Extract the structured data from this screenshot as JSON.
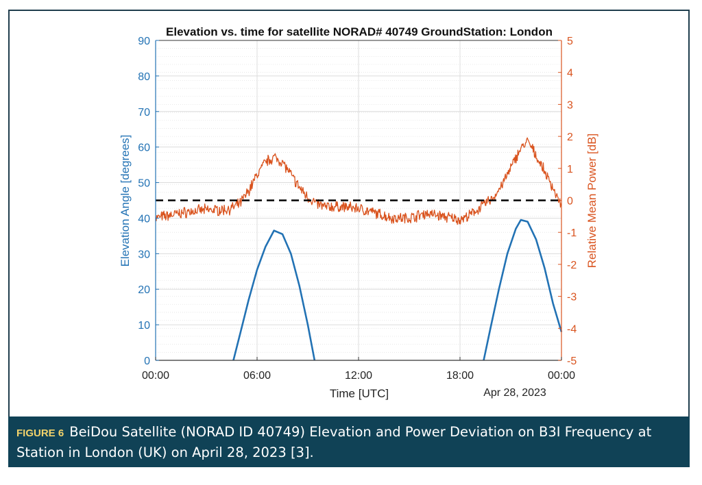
{
  "chart_data": {
    "type": "line",
    "title": "Elevation vs. time for satellite NORAD# 40749 GroundStation: London",
    "xlabel": "Time [UTC]",
    "date_label": "Apr 28, 2023",
    "x_ticks": [
      "00:00",
      "06:00",
      "12:00",
      "18:00",
      "00:00"
    ],
    "x_tick_hours": [
      0,
      6,
      12,
      18,
      24
    ],
    "xlim_hours": [
      0,
      24
    ],
    "y_left": {
      "label": "Elevation Angle [degrees]",
      "ylim": [
        0,
        90
      ],
      "ticks": [
        "0",
        "10",
        "20",
        "30",
        "40",
        "50",
        "60",
        "70",
        "80",
        "90"
      ],
      "tick_values": [
        0,
        10,
        20,
        30,
        40,
        50,
        60,
        70,
        80,
        90
      ],
      "color": "#2272b4"
    },
    "y_right": {
      "label": "Relative Mean Power [dB]",
      "ylim": [
        -5,
        5
      ],
      "ticks": [
        "-5",
        "-4",
        "-3",
        "-2",
        "-1",
        "0",
        "1",
        "2",
        "3",
        "4",
        "5"
      ],
      "tick_values": [
        -5,
        -4,
        -3,
        -2,
        -1,
        0,
        1,
        2,
        3,
        4,
        5
      ],
      "color": "#d9531e"
    },
    "grid": true,
    "series": [
      {
        "axis": "left",
        "color": "#2272b4",
        "x_hours": [
          4.6,
          5.0,
          5.5,
          6.0,
          6.5,
          7.0,
          7.5,
          8.0,
          8.5,
          9.0,
          9.4,
          19.4,
          19.8,
          20.3,
          20.8,
          21.3,
          21.6,
          22.0,
          22.5,
          23.0,
          23.5,
          24.0
        ],
        "values": [
          0,
          7.5,
          17,
          25.5,
          32,
          36.5,
          35.5,
          30,
          21,
          10,
          0,
          0,
          9,
          20,
          30,
          37,
          39.5,
          39,
          34,
          26,
          16,
          8
        ]
      },
      {
        "axis": "right",
        "color": "#d9531e",
        "x_hours": [
          0,
          1,
          2,
          3,
          4,
          4.5,
          5,
          5.5,
          6,
          6.5,
          7,
          7.5,
          8,
          8.5,
          9,
          9.5,
          10,
          11,
          12,
          13,
          14,
          15,
          16,
          17,
          18,
          18.5,
          19,
          19.5,
          20,
          20.5,
          21,
          21.5,
          22,
          22.5,
          23,
          23.5,
          24
        ],
        "values": [
          -0.55,
          -0.45,
          -0.35,
          -0.3,
          -0.3,
          -0.25,
          -0.1,
          0.3,
          0.8,
          1.2,
          1.35,
          1.2,
          0.8,
          0.4,
          0.1,
          -0.1,
          -0.2,
          -0.2,
          -0.25,
          -0.4,
          -0.55,
          -0.55,
          -0.4,
          -0.5,
          -0.6,
          -0.5,
          -0.3,
          -0.1,
          0.1,
          0.5,
          1.0,
          1.55,
          1.85,
          1.4,
          0.9,
          0.4,
          -0.2
        ]
      },
      {
        "axis": "right",
        "color": "#000000",
        "style": "dashed",
        "x_hours": [
          0,
          24
        ],
        "values": [
          0,
          0
        ]
      }
    ]
  },
  "caption": {
    "label": "FIGURE 6",
    "text": "BeiDou Satellite (NORAD ID 40749) Elevation and Power Deviation on B3I Frequency at Station in London (UK) on April 28, 2023 [3]."
  }
}
